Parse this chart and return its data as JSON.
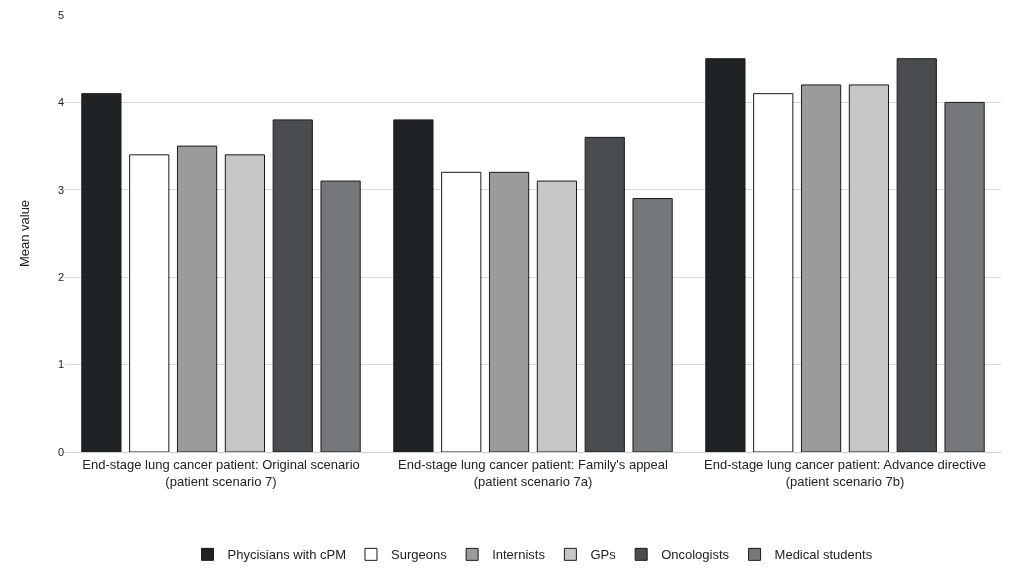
{
  "chart_data": {
    "type": "bar",
    "ylabel": "Mean value",
    "categories": [
      "End-stage lung cancer patient: Original scenario\n(patient scenario 7)",
      "End-stage lung cancer patient: Family's appeal\n(patient scenario 7a)",
      "End-stage lung cancer patient: Advance directive\n(patient scenario 7b)"
    ],
    "series": [
      {
        "name": "Phycisians with cPM",
        "color": "#202325",
        "values": [
          4.1,
          3.8,
          4.5
        ]
      },
      {
        "name": "Surgeons",
        "color": "#ffffff",
        "values": [
          3.4,
          3.2,
          4.1
        ]
      },
      {
        "name": "Internists",
        "color": "#9a9b9d",
        "values": [
          3.5,
          3.2,
          4.2
        ]
      },
      {
        "name": "GPs",
        "color": "#c6c6c6",
        "values": [
          3.4,
          3.1,
          4.2
        ]
      },
      {
        "name": "Oncologists",
        "color": "#4a4d4f",
        "values": [
          3.8,
          3.6,
          4.5
        ]
      },
      {
        "name": "Medical students",
        "color": "#75787b",
        "values": [
          3.1,
          2.9,
          4.0
        ]
      }
    ],
    "ylim": [
      0,
      5
    ],
    "yticks": [
      0,
      1,
      2,
      3,
      4,
      5
    ],
    "grid": "y",
    "legend": "bottom"
  }
}
